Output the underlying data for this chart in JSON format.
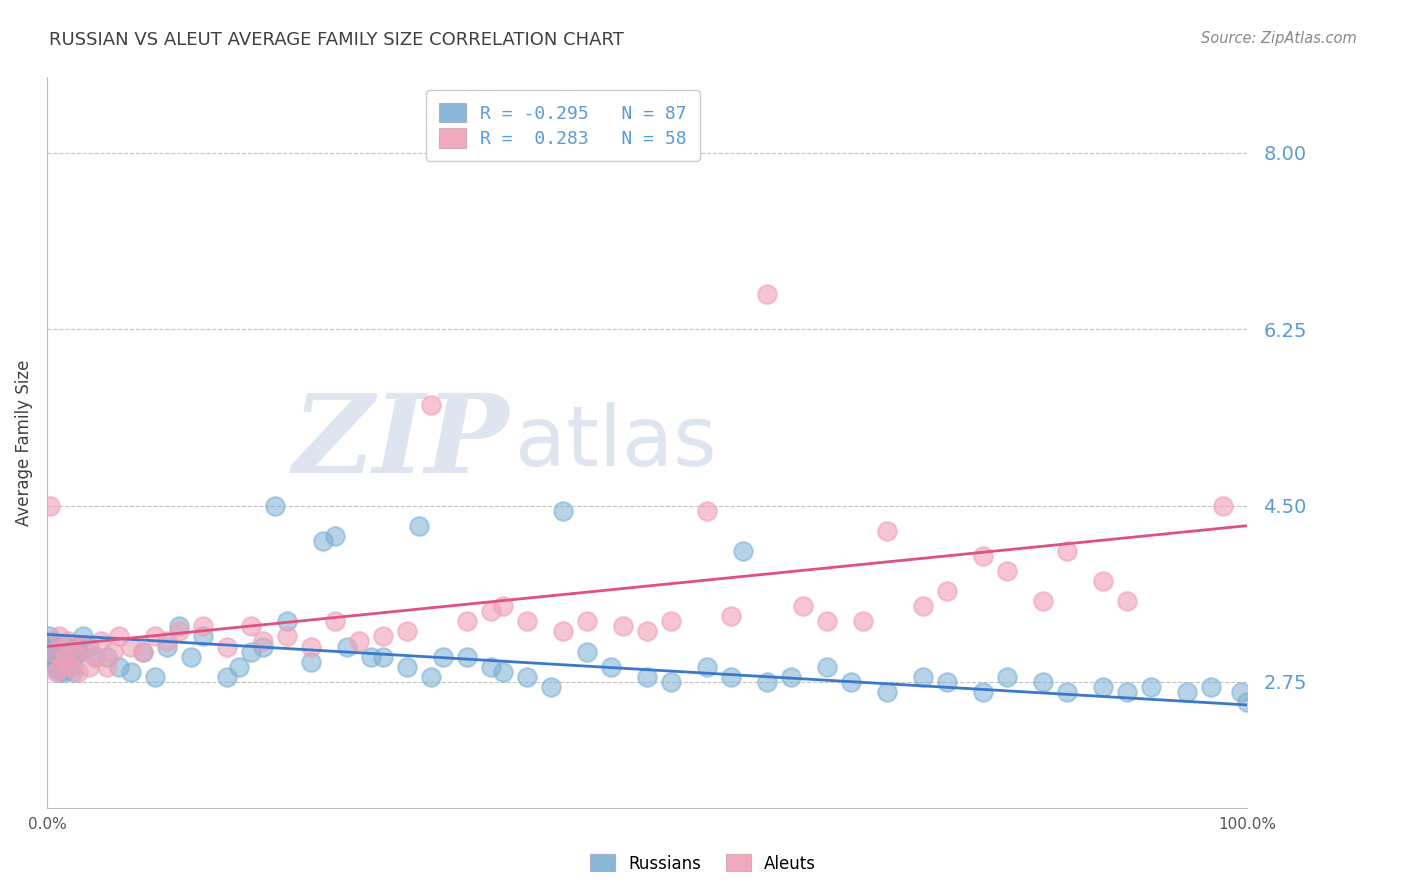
{
  "title": "RUSSIAN VS ALEUT AVERAGE FAMILY SIZE CORRELATION CHART",
  "source": "Source: ZipAtlas.com",
  "ylabel": "Average Family Size",
  "xlim": [
    0.0,
    100.0
  ],
  "ylim": [
    1.5,
    8.75
  ],
  "yticks": [
    2.75,
    4.5,
    6.25,
    8.0
  ],
  "xticklabels": [
    "0.0%",
    "100.0%"
  ],
  "russian_color": "#7BAFD4",
  "aleut_color": "#F0A0B8",
  "russian_line_color": "#3A78C9",
  "aleut_line_color": "#E05080",
  "russian_R": -0.295,
  "russian_N": 87,
  "aleut_R": 0.283,
  "aleut_N": 58,
  "background_color": "#FFFFFF",
  "grid_color": "#BBBBBB",
  "tick_label_color": "#5B9BD5",
  "title_color": "#404040",
  "watermark_zip": "ZIP",
  "watermark_atlas": "atlas",
  "watermark_color_zip": "#C8D4E8",
  "watermark_color_atlas": "#C8D4E8",
  "russian_x": [
    0.1,
    0.15,
    0.2,
    0.25,
    0.3,
    0.35,
    0.4,
    0.5,
    0.6,
    0.7,
    0.8,
    0.9,
    1.0,
    1.1,
    1.2,
    1.3,
    1.4,
    1.5,
    1.6,
    1.7,
    1.8,
    1.9,
    2.0,
    2.1,
    2.2,
    2.3,
    2.5,
    2.7,
    3.0,
    3.5,
    4.0,
    5.0,
    6.0,
    7.0,
    8.0,
    9.0,
    10.0,
    11.0,
    12.0,
    13.0,
    15.0,
    16.0,
    17.0,
    18.0,
    20.0,
    22.0,
    23.0,
    25.0,
    27.0,
    28.0,
    30.0,
    32.0,
    33.0,
    35.0,
    37.0,
    38.0,
    40.0,
    42.0,
    45.0,
    47.0,
    50.0,
    52.0,
    55.0,
    57.0,
    60.0,
    62.0,
    65.0,
    67.0,
    70.0,
    73.0,
    75.0,
    78.0,
    80.0,
    83.0,
    85.0,
    88.0,
    90.0,
    92.0,
    95.0,
    97.0,
    99.5,
    100.0,
    43.0,
    24.0,
    58.0,
    19.0,
    31.0
  ],
  "russian_y": [
    3.1,
    3.2,
    3.0,
    3.1,
    3.05,
    2.95,
    3.15,
    3.0,
    2.9,
    3.1,
    3.05,
    3.0,
    2.85,
    3.0,
    2.95,
    2.9,
    2.85,
    3.1,
    3.0,
    2.95,
    3.1,
    3.0,
    2.95,
    2.9,
    2.85,
    3.0,
    3.1,
    3.05,
    3.2,
    3.1,
    3.0,
    3.0,
    2.9,
    2.85,
    3.05,
    2.8,
    3.1,
    3.3,
    3.0,
    3.2,
    2.8,
    2.9,
    3.05,
    3.1,
    3.35,
    2.95,
    4.15,
    3.1,
    3.0,
    3.0,
    2.9,
    2.8,
    3.0,
    3.0,
    2.9,
    2.85,
    2.8,
    2.7,
    3.05,
    2.9,
    2.8,
    2.75,
    2.9,
    2.8,
    2.75,
    2.8,
    2.9,
    2.75,
    2.65,
    2.8,
    2.75,
    2.65,
    2.8,
    2.75,
    2.65,
    2.7,
    2.65,
    2.7,
    2.65,
    2.7,
    2.65,
    2.55,
    4.45,
    4.2,
    4.05,
    4.5,
    4.3
  ],
  "aleut_x": [
    0.3,
    0.5,
    0.8,
    1.0,
    1.2,
    1.5,
    1.8,
    2.0,
    2.3,
    2.6,
    3.0,
    3.5,
    4.0,
    4.5,
    5.0,
    5.5,
    6.0,
    7.0,
    8.0,
    9.0,
    10.0,
    11.0,
    13.0,
    15.0,
    17.0,
    18.0,
    20.0,
    22.0,
    24.0,
    26.0,
    28.0,
    30.0,
    32.0,
    35.0,
    37.0,
    38.0,
    40.0,
    43.0,
    45.0,
    48.0,
    50.0,
    52.0,
    55.0,
    57.0,
    60.0,
    63.0,
    65.0,
    68.0,
    70.0,
    73.0,
    75.0,
    78.0,
    80.0,
    83.0,
    85.0,
    88.0,
    90.0,
    98.0
  ],
  "aleut_y": [
    4.5,
    3.05,
    2.85,
    3.2,
    2.9,
    3.0,
    3.15,
    2.9,
    3.05,
    2.85,
    3.1,
    2.9,
    3.0,
    3.15,
    2.9,
    3.05,
    3.2,
    3.1,
    3.05,
    3.2,
    3.15,
    3.25,
    3.3,
    3.1,
    3.3,
    3.15,
    3.2,
    3.1,
    3.35,
    3.15,
    3.2,
    3.25,
    5.5,
    3.35,
    3.45,
    3.5,
    3.35,
    3.25,
    3.35,
    3.3,
    3.25,
    3.35,
    4.45,
    3.4,
    6.6,
    3.5,
    3.35,
    3.35,
    4.25,
    3.5,
    3.65,
    4.0,
    3.85,
    3.55,
    4.05,
    3.75,
    3.55,
    4.5
  ]
}
